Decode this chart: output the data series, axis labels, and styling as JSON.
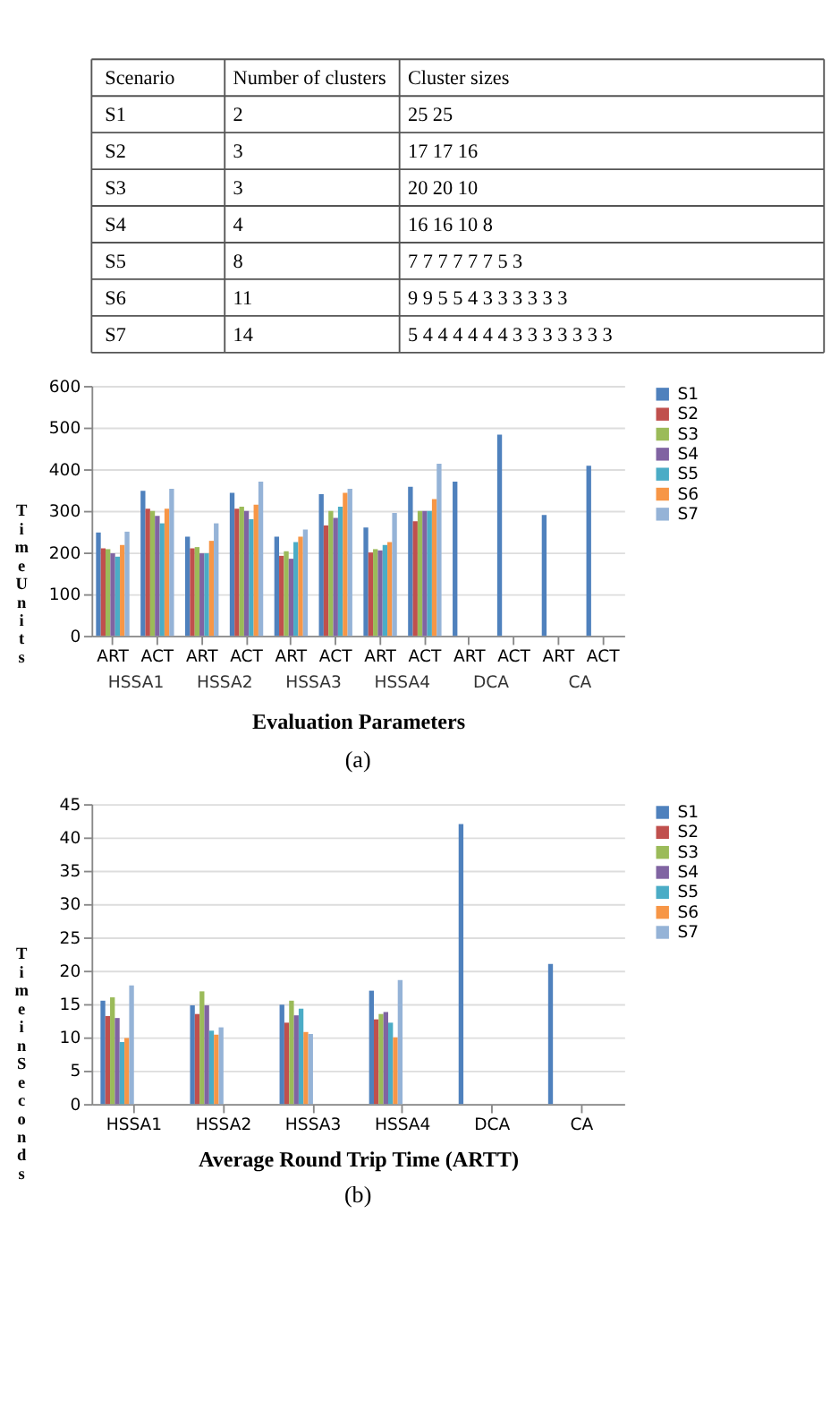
{
  "chart_data": [
    {
      "type": "other",
      "annotations": [
        "Scenario",
        "Number of clusters",
        "Cluster sizes",
        "S1",
        "2",
        "25 25",
        "S2",
        "3",
        "17 17 16",
        "S3",
        "3",
        "20 20 10",
        "S4",
        "4",
        "16 16 10 8",
        "S5",
        "8",
        "7 7 7 7 7 7 5 3",
        "S6",
        "11",
        "9 9 5 5 4 3 3 3 3 3 3",
        "S7",
        "14",
        "5 4 4 4 4 4 4 3 3 3 3 3 3 3"
      ]
    },
    {
      "type": "bar",
      "xlabel": "Evaluation Parameters",
      "ylabel": "Time Units",
      "categories": [
        "ART",
        "ACT",
        "ART",
        "ACT",
        "ART",
        "ACT",
        "ART",
        "ACT",
        "ART",
        "ACT",
        "ART",
        "ACT"
      ],
      "annotations": [
        "HSSA1",
        "HSSA2",
        "HSSA3",
        "HSSA4",
        "DCA",
        "CA",
        "(a)"
      ],
      "ylim": [
        0,
        600
      ],
      "yticks": [
        0,
        100,
        200,
        300,
        400,
        500,
        600
      ],
      "grid": "y",
      "legend": "right",
      "series": [
        {
          "name": "S1",
          "color": "#4f81bd",
          "values": [
            248,
            348,
            238,
            343,
            238,
            340,
            260,
            358,
            370,
            483,
            290,
            408
          ]
        },
        {
          "name": "S2",
          "color": "#c0504d",
          "values": [
            210,
            305,
            210,
            305,
            192,
            265,
            200,
            275,
            null,
            null,
            null,
            null
          ]
        },
        {
          "name": "S3",
          "color": "#9bbb59",
          "values": [
            208,
            300,
            213,
            310,
            203,
            300,
            208,
            300,
            null,
            null,
            null,
            null
          ]
        },
        {
          "name": "S4",
          "color": "#8064a2",
          "values": [
            198,
            288,
            198,
            300,
            185,
            283,
            205,
            300,
            null,
            null,
            null,
            null
          ]
        },
        {
          "name": "S5",
          "color": "#4bacc6",
          "values": [
            190,
            270,
            198,
            280,
            225,
            310,
            218,
            300,
            null,
            null,
            null,
            null
          ]
        },
        {
          "name": "S6",
          "color": "#f79646",
          "values": [
            218,
            305,
            228,
            315,
            238,
            343,
            225,
            328,
            null,
            null,
            null,
            null
          ]
        },
        {
          "name": "S7",
          "color": "#95b3d7",
          "values": [
            250,
            353,
            270,
            370,
            255,
            353,
            295,
            413,
            null,
            null,
            null,
            null
          ]
        }
      ]
    },
    {
      "type": "bar",
      "xlabel": "Average Round Trip Time (ARTT)",
      "ylabel": "Time in Seconds",
      "categories": [
        "HSSA1",
        "HSSA2",
        "HSSA3",
        "HSSA4",
        "DCA",
        "CA"
      ],
      "annotations": [
        "(b)"
      ],
      "ylim": [
        0,
        45
      ],
      "yticks": [
        0,
        5,
        10,
        15,
        20,
        25,
        30,
        35,
        40,
        45
      ],
      "grid": "y",
      "legend": "right",
      "series": [
        {
          "name": "S1",
          "color": "#4f81bd",
          "values": [
            15.5,
            14.8,
            14.9,
            17.0,
            42.0,
            21.0
          ]
        },
        {
          "name": "S2",
          "color": "#c0504d",
          "values": [
            13.2,
            13.5,
            12.2,
            12.7,
            null,
            null
          ]
        },
        {
          "name": "S3",
          "color": "#9bbb59",
          "values": [
            16.0,
            16.9,
            15.5,
            13.5,
            null,
            null
          ]
        },
        {
          "name": "S4",
          "color": "#8064a2",
          "values": [
            12.9,
            14.8,
            13.3,
            13.8,
            null,
            null
          ]
        },
        {
          "name": "S5",
          "color": "#4bacc6",
          "values": [
            9.3,
            11.0,
            14.3,
            12.2,
            null,
            null
          ]
        },
        {
          "name": "S6",
          "color": "#f79646",
          "values": [
            9.9,
            10.4,
            10.8,
            10.0,
            null,
            null
          ]
        },
        {
          "name": "S7",
          "color": "#95b3d7",
          "values": [
            17.8,
            11.5,
            10.5,
            18.6,
            null,
            null
          ]
        }
      ]
    }
  ]
}
